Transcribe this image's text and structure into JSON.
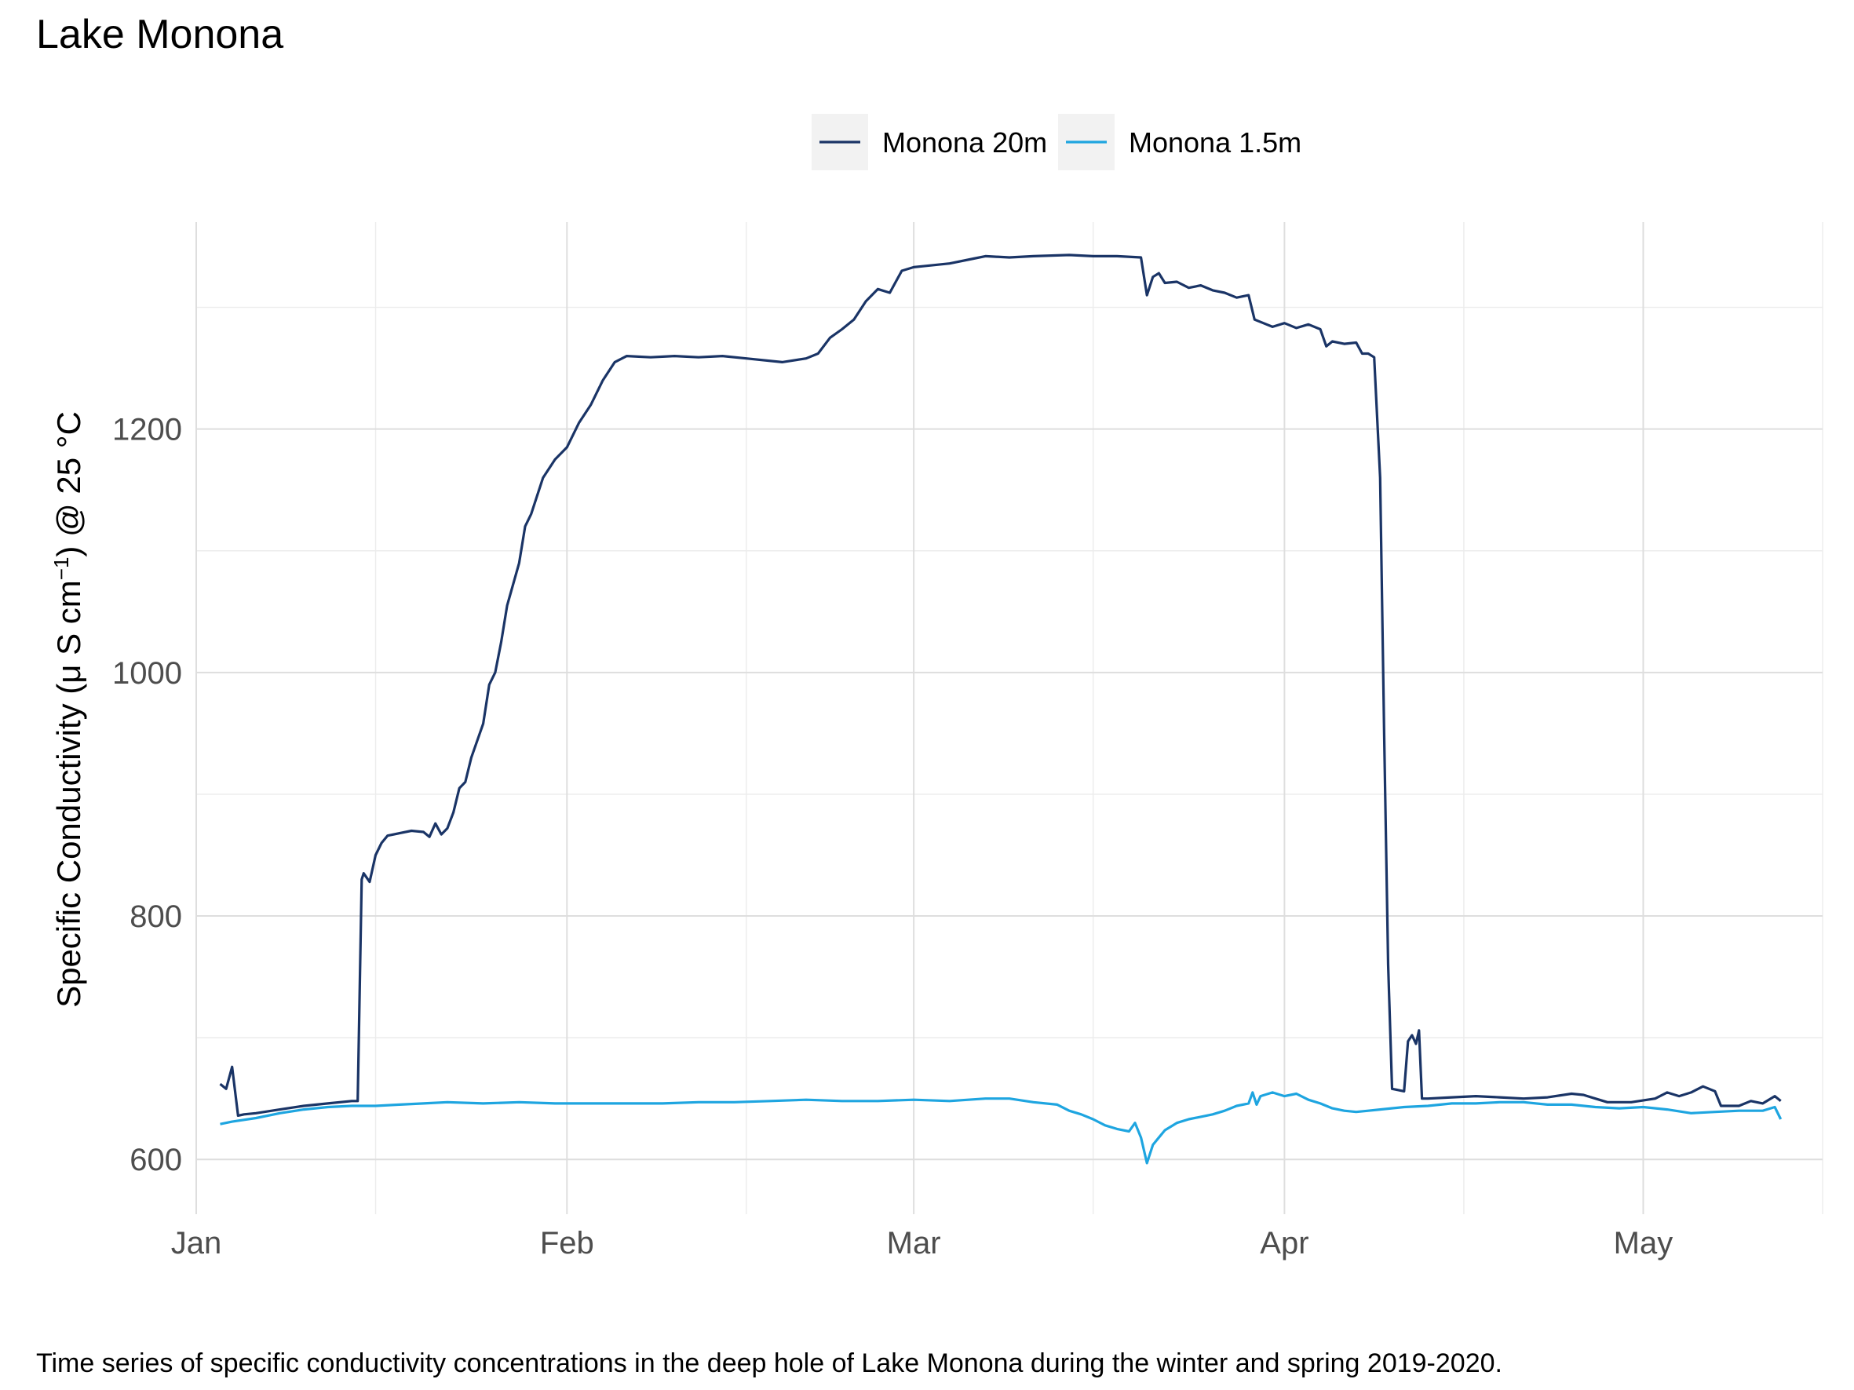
{
  "caption": "Time series of specific conductivity concentrations in the deep hole of Lake Monona during the winter and spring 2019-2020.",
  "chart_data": {
    "type": "line",
    "title": "Lake Monona",
    "xlabel": "",
    "ylabel": {
      "pre": "Specific Conductivity (",
      "mu": "μ",
      "mid": " S cm",
      "sup": "−1",
      "post": ") @ 25 °C"
    },
    "x_axis": {
      "type": "date",
      "range": [
        "2020-01-01",
        "2020-05-16"
      ],
      "ticks": [
        {
          "date": "2020-01-01",
          "label": "Jan"
        },
        {
          "date": "2020-02-01",
          "label": "Feb"
        },
        {
          "date": "2020-03-01",
          "label": "Mar"
        },
        {
          "date": "2020-04-01",
          "label": "Apr"
        },
        {
          "date": "2020-05-01",
          "label": "May"
        }
      ],
      "minor_ticks": [
        "2020-01-16",
        "2020-02-16",
        "2020-03-16",
        "2020-04-16",
        "2020-05-16"
      ]
    },
    "y_axis": {
      "range": [
        555,
        1370
      ],
      "ticks": [
        600,
        800,
        1000,
        1200
      ],
      "minor_ticks": [
        700,
        900,
        1100,
        1300
      ]
    },
    "grid": true,
    "legend": {
      "position": "top"
    },
    "series": [
      {
        "name": "Monona 20m",
        "color": "#1a3466",
        "points": [
          [
            "2020-01-03",
            662
          ],
          [
            "2020-01-03 12:00",
            658
          ],
          [
            "2020-01-04",
            676
          ],
          [
            "2020-01-04 12:00",
            636
          ],
          [
            "2020-01-05",
            637
          ],
          [
            "2020-01-06",
            638
          ],
          [
            "2020-01-08",
            641
          ],
          [
            "2020-01-10",
            644
          ],
          [
            "2020-01-12",
            646
          ],
          [
            "2020-01-14",
            648
          ],
          [
            "2020-01-14 12:00",
            648
          ],
          [
            "2020-01-14 20:00",
            830
          ],
          [
            "2020-01-15",
            835
          ],
          [
            "2020-01-15 12:00",
            828
          ],
          [
            "2020-01-16",
            850
          ],
          [
            "2020-01-16 12:00",
            860
          ],
          [
            "2020-01-17",
            866
          ],
          [
            "2020-01-18",
            868
          ],
          [
            "2020-01-19",
            870
          ],
          [
            "2020-01-20",
            869
          ],
          [
            "2020-01-20 12:00",
            865
          ],
          [
            "2020-01-21",
            876
          ],
          [
            "2020-01-21 12:00",
            867
          ],
          [
            "2020-01-22",
            872
          ],
          [
            "2020-01-22 12:00",
            885
          ],
          [
            "2020-01-23",
            905
          ],
          [
            "2020-01-23 12:00",
            910
          ],
          [
            "2020-01-24",
            930
          ],
          [
            "2020-01-25",
            958
          ],
          [
            "2020-01-25 12:00",
            990
          ],
          [
            "2020-01-26",
            1000
          ],
          [
            "2020-01-26 12:00",
            1025
          ],
          [
            "2020-01-27",
            1055
          ],
          [
            "2020-01-28",
            1090
          ],
          [
            "2020-01-28 12:00",
            1120
          ],
          [
            "2020-01-29",
            1130
          ],
          [
            "2020-01-30",
            1160
          ],
          [
            "2020-01-31",
            1175
          ],
          [
            "2020-02-01",
            1185
          ],
          [
            "2020-02-02",
            1205
          ],
          [
            "2020-02-03",
            1220
          ],
          [
            "2020-02-04",
            1240
          ],
          [
            "2020-02-05",
            1255
          ],
          [
            "2020-02-06",
            1260
          ],
          [
            "2020-02-08",
            1259
          ],
          [
            "2020-02-10",
            1260
          ],
          [
            "2020-02-12",
            1259
          ],
          [
            "2020-02-14",
            1260
          ],
          [
            "2020-02-16",
            1258
          ],
          [
            "2020-02-19",
            1255
          ],
          [
            "2020-02-21",
            1258
          ],
          [
            "2020-02-22",
            1262
          ],
          [
            "2020-02-23",
            1275
          ],
          [
            "2020-02-24",
            1282
          ],
          [
            "2020-02-25",
            1290
          ],
          [
            "2020-02-26",
            1305
          ],
          [
            "2020-02-27",
            1315
          ],
          [
            "2020-02-28",
            1312
          ],
          [
            "2020-02-29",
            1330
          ],
          [
            "2020-03-01",
            1333
          ],
          [
            "2020-03-02",
            1334
          ],
          [
            "2020-03-04",
            1336
          ],
          [
            "2020-03-06",
            1340
          ],
          [
            "2020-03-07",
            1342
          ],
          [
            "2020-03-09",
            1341
          ],
          [
            "2020-03-11",
            1342
          ],
          [
            "2020-03-14",
            1343
          ],
          [
            "2020-03-16",
            1342
          ],
          [
            "2020-03-18",
            1342
          ],
          [
            "2020-03-20",
            1341
          ],
          [
            "2020-03-20 12:00",
            1310
          ],
          [
            "2020-03-21",
            1325
          ],
          [
            "2020-03-21 12:00",
            1328
          ],
          [
            "2020-03-22",
            1320
          ],
          [
            "2020-03-23",
            1321
          ],
          [
            "2020-03-24",
            1316
          ],
          [
            "2020-03-25",
            1318
          ],
          [
            "2020-03-26",
            1314
          ],
          [
            "2020-03-27",
            1312
          ],
          [
            "2020-03-28",
            1308
          ],
          [
            "2020-03-29",
            1310
          ],
          [
            "2020-03-29 12:00",
            1290
          ],
          [
            "2020-03-30",
            1288
          ],
          [
            "2020-03-31",
            1284
          ],
          [
            "2020-04-01",
            1287
          ],
          [
            "2020-04-02",
            1283
          ],
          [
            "2020-04-03",
            1286
          ],
          [
            "2020-04-04",
            1282
          ],
          [
            "2020-04-04 12:00",
            1268
          ],
          [
            "2020-04-05",
            1272
          ],
          [
            "2020-04-06",
            1270
          ],
          [
            "2020-04-07",
            1271
          ],
          [
            "2020-04-07 12:00",
            1262
          ],
          [
            "2020-04-08",
            1262
          ],
          [
            "2020-04-08 12:00",
            1259
          ],
          [
            "2020-04-09",
            1160
          ],
          [
            "2020-04-09 08:00",
            950
          ],
          [
            "2020-04-09 16:00",
            760
          ],
          [
            "2020-04-10",
            658
          ],
          [
            "2020-04-10 12:00",
            657
          ],
          [
            "2020-04-11",
            656
          ],
          [
            "2020-04-11 08:00",
            697
          ],
          [
            "2020-04-11 16:00",
            702
          ],
          [
            "2020-04-12",
            695
          ],
          [
            "2020-04-12 06:00",
            706
          ],
          [
            "2020-04-12 12:00",
            650
          ],
          [
            "2020-04-13",
            650
          ],
          [
            "2020-04-15",
            651
          ],
          [
            "2020-04-17",
            652
          ],
          [
            "2020-04-19",
            651
          ],
          [
            "2020-04-21",
            650
          ],
          [
            "2020-04-23",
            651
          ],
          [
            "2020-04-25",
            654
          ],
          [
            "2020-04-26",
            653
          ],
          [
            "2020-04-27",
            650
          ],
          [
            "2020-04-28",
            647
          ],
          [
            "2020-04-30",
            647
          ],
          [
            "2020-05-02",
            650
          ],
          [
            "2020-05-03",
            655
          ],
          [
            "2020-05-04",
            652
          ],
          [
            "2020-05-05",
            655
          ],
          [
            "2020-05-06",
            660
          ],
          [
            "2020-05-07",
            656
          ],
          [
            "2020-05-07 12:00",
            644
          ],
          [
            "2020-05-09",
            644
          ],
          [
            "2020-05-10",
            648
          ],
          [
            "2020-05-11",
            646
          ],
          [
            "2020-05-12",
            652
          ],
          [
            "2020-05-12 12:00",
            648
          ]
        ]
      },
      {
        "name": "Monona 1.5m",
        "color": "#1ea5e0",
        "points": [
          [
            "2020-01-03",
            629
          ],
          [
            "2020-01-04",
            631
          ],
          [
            "2020-01-06",
            634
          ],
          [
            "2020-01-08",
            638
          ],
          [
            "2020-01-10",
            641
          ],
          [
            "2020-01-12",
            643
          ],
          [
            "2020-01-14",
            644
          ],
          [
            "2020-01-16",
            644
          ],
          [
            "2020-01-18",
            645
          ],
          [
            "2020-01-20",
            646
          ],
          [
            "2020-01-22",
            647
          ],
          [
            "2020-01-25",
            646
          ],
          [
            "2020-01-28",
            647
          ],
          [
            "2020-01-31",
            646
          ],
          [
            "2020-02-03",
            646
          ],
          [
            "2020-02-06",
            646
          ],
          [
            "2020-02-09",
            646
          ],
          [
            "2020-02-12",
            647
          ],
          [
            "2020-02-15",
            647
          ],
          [
            "2020-02-18",
            648
          ],
          [
            "2020-02-21",
            649
          ],
          [
            "2020-02-24",
            648
          ],
          [
            "2020-02-27",
            648
          ],
          [
            "2020-03-01",
            649
          ],
          [
            "2020-03-04",
            648
          ],
          [
            "2020-03-07",
            650
          ],
          [
            "2020-03-09",
            650
          ],
          [
            "2020-03-11",
            647
          ],
          [
            "2020-03-13",
            645
          ],
          [
            "2020-03-14",
            640
          ],
          [
            "2020-03-15",
            637
          ],
          [
            "2020-03-16",
            633
          ],
          [
            "2020-03-17",
            628
          ],
          [
            "2020-03-18",
            625
          ],
          [
            "2020-03-19",
            623
          ],
          [
            "2020-03-19 12:00",
            630
          ],
          [
            "2020-03-20",
            618
          ],
          [
            "2020-03-20 12:00",
            597
          ],
          [
            "2020-03-21",
            612
          ],
          [
            "2020-03-21 12:00",
            618
          ],
          [
            "2020-03-22",
            624
          ],
          [
            "2020-03-23",
            630
          ],
          [
            "2020-03-24",
            633
          ],
          [
            "2020-03-25",
            635
          ],
          [
            "2020-03-26",
            637
          ],
          [
            "2020-03-27",
            640
          ],
          [
            "2020-03-28",
            644
          ],
          [
            "2020-03-29",
            646
          ],
          [
            "2020-03-29 08:00",
            655
          ],
          [
            "2020-03-29 16:00",
            645
          ],
          [
            "2020-03-30",
            652
          ],
          [
            "2020-03-31",
            655
          ],
          [
            "2020-04-01",
            652
          ],
          [
            "2020-04-02",
            654
          ],
          [
            "2020-04-03",
            649
          ],
          [
            "2020-04-04",
            646
          ],
          [
            "2020-04-05",
            642
          ],
          [
            "2020-04-06",
            640
          ],
          [
            "2020-04-07",
            639
          ],
          [
            "2020-04-08",
            640
          ],
          [
            "2020-04-09",
            641
          ],
          [
            "2020-04-11",
            643
          ],
          [
            "2020-04-13",
            644
          ],
          [
            "2020-04-15",
            646
          ],
          [
            "2020-04-17",
            646
          ],
          [
            "2020-04-19",
            647
          ],
          [
            "2020-04-21",
            647
          ],
          [
            "2020-04-23",
            645
          ],
          [
            "2020-04-25",
            645
          ],
          [
            "2020-04-27",
            643
          ],
          [
            "2020-04-29",
            642
          ],
          [
            "2020-05-01",
            643
          ],
          [
            "2020-05-03",
            641
          ],
          [
            "2020-05-05",
            638
          ],
          [
            "2020-05-07",
            639
          ],
          [
            "2020-05-09",
            640
          ],
          [
            "2020-05-11",
            640
          ],
          [
            "2020-05-12",
            643
          ],
          [
            "2020-05-12 12:00",
            633
          ]
        ]
      }
    ]
  }
}
